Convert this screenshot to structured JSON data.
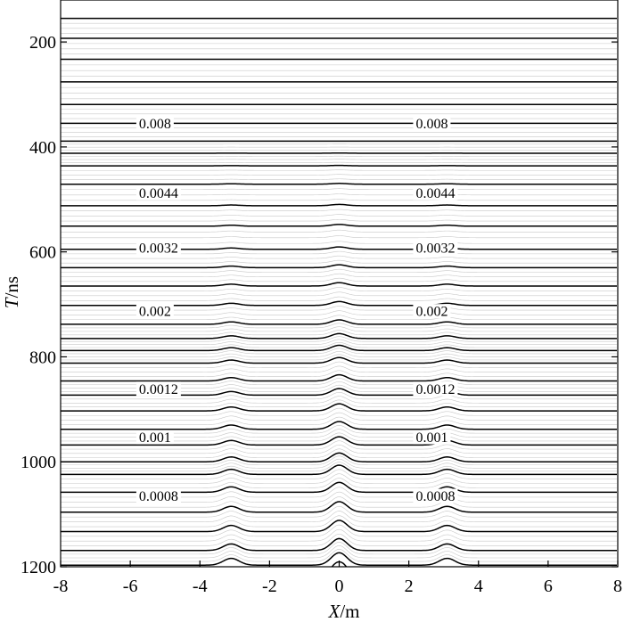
{
  "chart_data": {
    "type": "line",
    "subtype": "contour-profile-stack",
    "xlabel": {
      "italic": "X",
      "rest": "/m"
    },
    "ylabel": {
      "italic": "T",
      "rest": "/ns"
    },
    "xlim": [
      -8,
      8
    ],
    "ylim": [
      120,
      1200
    ],
    "y_inverted": true,
    "x_ticks": [
      "-8",
      "-6",
      "-4",
      "-2",
      "0",
      "2",
      "4",
      "6",
      "8"
    ],
    "x_tick_values": [
      -8,
      -6,
      -4,
      -2,
      0,
      2,
      4,
      6,
      8
    ],
    "y_ticks": [
      "200",
      "400",
      "600",
      "800",
      "1000",
      "1200"
    ],
    "y_tick_values": [
      200,
      400,
      600,
      800,
      1000,
      1200
    ],
    "anomaly_centers_x": [
      -3.1,
      0,
      3.1
    ],
    "contour_levels_T": [
      155,
      193,
      233,
      276,
      319,
      355,
      389,
      412,
      436,
      471,
      512,
      551,
      595,
      630,
      665,
      702,
      738,
      765,
      788,
      812,
      846,
      873,
      903,
      938,
      968,
      1000,
      1024,
      1058,
      1096,
      1133,
      1169,
      1197
    ],
    "contour_labels": [
      {
        "text": "0.008",
        "T": 355
      },
      {
        "text": "0.0044",
        "T": 488
      },
      {
        "text": "0.0032",
        "T": 592
      },
      {
        "text": "0.002",
        "T": 713
      },
      {
        "text": "0.0012",
        "T": 861
      },
      {
        "text": "0.001",
        "T": 953
      },
      {
        "text": "0.0008",
        "T": 1065
      }
    ],
    "grid": false,
    "line_color": "#000000",
    "minor_line_color": "#c8c8c8"
  }
}
